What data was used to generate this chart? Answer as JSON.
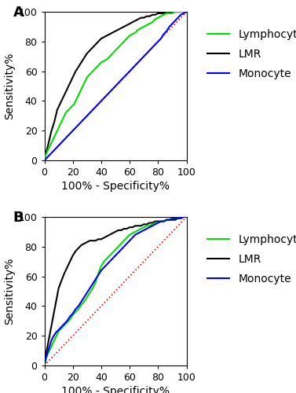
{
  "panel_A_label": "A",
  "panel_B_label": "B",
  "xlabel": "100% - Specificity%",
  "ylabel": "Sensitivity%",
  "xlim": [
    0,
    100
  ],
  "ylim": [
    0,
    100
  ],
  "xticks": [
    0,
    20,
    40,
    60,
    80,
    100
  ],
  "yticks": [
    0,
    20,
    40,
    60,
    80,
    100
  ],
  "legend_labels": [
    "Lymphocyte",
    "LMR",
    "Monocyte"
  ],
  "colors": {
    "lymphocyte": "#00dd00",
    "lmr": "#000000",
    "monocyte": "#0000ff",
    "diagonal": "#ff0000"
  },
  "line_width": 1.5,
  "background_color": "#ffffff",
  "panel_label_fontsize": 13,
  "axis_label_fontsize": 10,
  "tick_fontsize": 9,
  "legend_fontsize": 10,
  "A_lymphocyte_x": [
    0,
    1,
    2,
    3,
    4,
    5,
    6,
    7,
    8,
    9,
    10,
    11,
    12,
    13,
    14,
    15,
    16,
    17,
    18,
    19,
    20,
    21,
    22,
    23,
    24,
    25,
    26,
    27,
    28,
    29,
    30,
    32,
    34,
    36,
    38,
    40,
    42,
    44,
    46,
    48,
    50,
    52,
    54,
    56,
    58,
    60,
    62,
    64,
    66,
    68,
    70,
    72,
    74,
    76,
    78,
    80,
    82,
    84,
    86,
    88,
    90,
    92,
    94,
    96,
    98,
    100
  ],
  "A_lymphocyte_y": [
    0,
    4,
    6,
    8,
    10,
    12,
    14,
    16,
    18,
    20,
    22,
    24,
    26,
    28,
    30,
    32,
    33,
    34,
    35,
    36,
    37,
    38,
    40,
    42,
    44,
    46,
    48,
    50,
    52,
    54,
    56,
    58,
    60,
    62,
    64,
    66,
    67,
    68,
    70,
    72,
    74,
    76,
    78,
    80,
    82,
    84,
    85,
    86,
    88,
    89,
    90,
    91,
    92,
    93,
    95,
    96,
    97,
    98,
    99,
    99,
    99,
    100,
    100,
    100,
    100,
    100
  ],
  "A_lmr_x": [
    0,
    1,
    2,
    3,
    4,
    5,
    6,
    7,
    8,
    9,
    10,
    11,
    12,
    13,
    14,
    15,
    16,
    17,
    18,
    19,
    20,
    22,
    24,
    26,
    28,
    30,
    32,
    34,
    36,
    38,
    40,
    42,
    44,
    46,
    48,
    50,
    52,
    54,
    56,
    58,
    60,
    62,
    64,
    66,
    68,
    70,
    72,
    74,
    76,
    78,
    80,
    82,
    84,
    86,
    88,
    90,
    92,
    94,
    96,
    98,
    100
  ],
  "A_lmr_y": [
    0,
    5,
    8,
    12,
    16,
    20,
    23,
    26,
    30,
    34,
    36,
    38,
    40,
    42,
    44,
    46,
    48,
    50,
    52,
    54,
    56,
    60,
    63,
    66,
    69,
    72,
    74,
    76,
    78,
    80,
    82,
    83,
    84,
    85,
    86,
    87,
    88,
    89,
    90,
    91,
    92,
    93,
    94,
    95,
    96,
    96,
    97,
    97,
    98,
    98,
    99,
    99,
    99,
    99,
    100,
    100,
    100,
    100,
    100,
    100,
    100
  ],
  "A_monocyte_x": [
    0,
    2,
    4,
    6,
    8,
    10,
    12,
    14,
    16,
    18,
    20,
    22,
    24,
    26,
    28,
    30,
    32,
    34,
    36,
    38,
    40,
    42,
    44,
    46,
    48,
    50,
    52,
    54,
    56,
    58,
    60,
    62,
    64,
    66,
    68,
    70,
    72,
    74,
    76,
    78,
    80,
    82,
    84,
    86,
    88,
    90,
    92,
    94,
    96,
    98,
    100
  ],
  "A_monocyte_y": [
    0,
    2,
    4,
    6,
    8,
    10,
    12,
    14,
    16,
    18,
    20,
    22,
    24,
    26,
    28,
    30,
    32,
    34,
    36,
    38,
    40,
    42,
    44,
    46,
    48,
    50,
    52,
    54,
    56,
    58,
    60,
    62,
    64,
    66,
    68,
    70,
    72,
    74,
    76,
    78,
    80,
    82,
    85,
    87,
    90,
    92,
    94,
    96,
    98,
    99,
    100
  ],
  "B_lymphocyte_x": [
    0,
    1,
    2,
    3,
    4,
    5,
    6,
    7,
    8,
    9,
    10,
    12,
    14,
    16,
    18,
    20,
    22,
    24,
    26,
    28,
    30,
    32,
    34,
    36,
    38,
    40,
    42,
    44,
    46,
    48,
    50,
    52,
    54,
    56,
    58,
    60,
    62,
    64,
    66,
    68,
    70,
    72,
    74,
    76,
    78,
    80,
    82,
    84,
    86,
    88,
    90,
    92,
    94,
    96,
    98,
    100
  ],
  "B_lymphocyte_y": [
    0,
    4,
    7,
    9,
    11,
    13,
    15,
    17,
    19,
    21,
    23,
    25,
    27,
    29,
    31,
    34,
    36,
    38,
    41,
    43,
    46,
    49,
    52,
    56,
    62,
    67,
    70,
    72,
    74,
    76,
    78,
    80,
    82,
    84,
    86,
    88,
    89,
    90,
    91,
    92,
    93,
    94,
    94,
    95,
    96,
    96,
    97,
    97,
    98,
    98,
    99,
    99,
    99,
    100,
    100,
    100
  ],
  "B_lmr_x": [
    0,
    1,
    2,
    3,
    4,
    5,
    6,
    7,
    8,
    9,
    10,
    12,
    14,
    16,
    18,
    20,
    22,
    24,
    26,
    28,
    30,
    32,
    34,
    36,
    38,
    40,
    42,
    44,
    46,
    48,
    50,
    52,
    54,
    56,
    58,
    60,
    62,
    64,
    66,
    68,
    70,
    72,
    74,
    76,
    78,
    80,
    82,
    84,
    86,
    88,
    90,
    92,
    94,
    96,
    98,
    100
  ],
  "B_lmr_y": [
    0,
    7,
    12,
    17,
    22,
    27,
    32,
    37,
    42,
    47,
    52,
    57,
    62,
    66,
    70,
    74,
    77,
    79,
    81,
    82,
    83,
    84,
    84,
    84,
    85,
    85,
    86,
    87,
    88,
    89,
    90,
    91,
    91,
    92,
    92,
    93,
    93,
    94,
    94,
    94,
    95,
    95,
    96,
    96,
    97,
    97,
    97,
    97,
    98,
    98,
    98,
    98,
    99,
    99,
    100,
    100
  ],
  "B_monocyte_x": [
    0,
    1,
    2,
    3,
    4,
    5,
    6,
    8,
    10,
    12,
    14,
    16,
    18,
    20,
    22,
    24,
    26,
    28,
    30,
    32,
    34,
    36,
    38,
    40,
    42,
    44,
    46,
    48,
    50,
    52,
    54,
    56,
    58,
    60,
    62,
    64,
    66,
    68,
    70,
    72,
    74,
    76,
    78,
    80,
    82,
    84,
    86,
    88,
    90,
    92,
    94,
    96,
    98,
    100
  ],
  "B_monocyte_y": [
    0,
    5,
    8,
    11,
    14,
    17,
    19,
    22,
    24,
    26,
    28,
    30,
    33,
    35,
    38,
    40,
    43,
    46,
    49,
    52,
    55,
    58,
    61,
    64,
    66,
    68,
    70,
    72,
    74,
    76,
    78,
    80,
    82,
    84,
    86,
    88,
    89,
    90,
    91,
    92,
    93,
    94,
    95,
    96,
    97,
    97,
    98,
    98,
    99,
    99,
    99,
    100,
    100,
    100
  ]
}
